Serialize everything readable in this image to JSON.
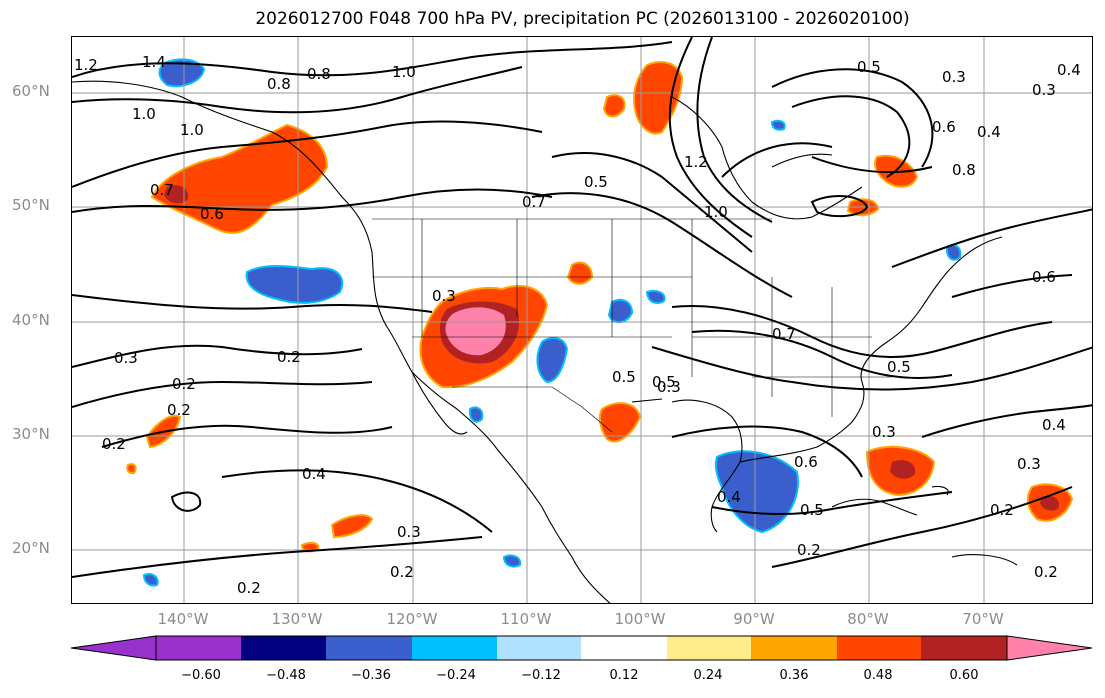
{
  "title": "2026012700 F048 700 hPa PV, precipitation PC (2026013100 - 2026020100)",
  "latitude_labels": [
    "60°N",
    "50°N",
    "40°N",
    "30°N",
    "20°N"
  ],
  "longitude_labels": [
    "140°W",
    "130°W",
    "120°W",
    "110°W",
    "100°W",
    "90°W",
    "80°W",
    "70°W"
  ],
  "contour_labels": [
    "1.2",
    "1.4",
    "1.0",
    "0.8",
    "0.8",
    "1.0",
    "1.0",
    "0.7",
    "0.6",
    "0.3",
    "0.2",
    "0.2",
    "0.2",
    "0.4",
    "0.3",
    "0.2",
    "0.2",
    "0.3",
    "0.7",
    "0.5",
    "0.5",
    "0.5",
    "0.3",
    "1.2",
    "1.0",
    "0.5",
    "0.3",
    "0.6",
    "0.4",
    "0.3",
    "0.4",
    "0.8",
    "0.6",
    "0.7",
    "0.5",
    "0.3",
    "0.6",
    "0.4",
    "0.5",
    "0.2",
    "0.3",
    "0.2",
    "0.4",
    "0.2",
    "0.2"
  ],
  "colorbar": {
    "ticks": [
      "−0.60",
      "−0.48",
      "−0.36",
      "−0.24",
      "−0.12",
      "0.12",
      "0.24",
      "0.36",
      "0.48",
      "0.60"
    ],
    "colors": [
      "#9932cc",
      "#000080",
      "#3a5fcd",
      "#00bfff",
      "#b0e2ff",
      "#ffffff",
      "#ffec8b",
      "#ffa500",
      "#ff4500",
      "#b22222",
      "#ff82ab"
    ]
  },
  "colors": {
    "pos_low": "#ffec8b",
    "pos_mid": "#ffa500",
    "pos_high": "#ff4500",
    "pos_dark": "#b22222",
    "pos_max": "#ff82ab",
    "neg_low": "#b0e2ff",
    "neg_mid": "#00bfff",
    "neg_high": "#3a5fcd",
    "neg_dark": "#000080",
    "grid": "#9a9a9a",
    "coast": "#000000",
    "contour": "#000000"
  }
}
